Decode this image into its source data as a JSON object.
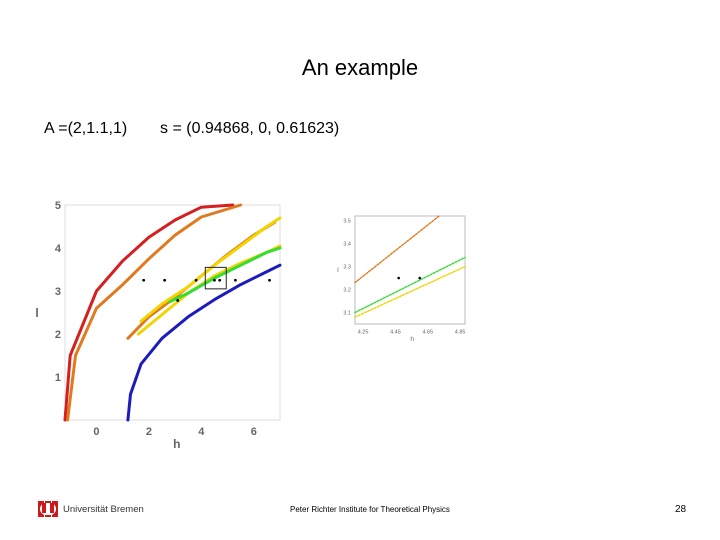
{
  "slide": {
    "title": "An example",
    "formula_a": "A =(2,1.1,1)",
    "formula_s": "s = (0.94868, 0, 0.61623)"
  },
  "footer": {
    "institute": "Peter Richter Institute for Theoretical Physics",
    "page_number": "28",
    "logo_text": "Universität Bremen",
    "logo_color": "#cc1a1a"
  },
  "chart_data": [
    {
      "type": "line",
      "xlabel": "h",
      "ylabel": "l",
      "xlim": [
        -1.2,
        7
      ],
      "ylim": [
        0,
        5
      ],
      "x_ticks": [
        "0",
        "2",
        "4",
        "6"
      ],
      "y_ticks": [
        "1",
        "2",
        "3",
        "4",
        "5"
      ],
      "series": [
        {
          "color": "#d42020",
          "points": [
            [
              -1.2,
              0
            ],
            [
              -1,
              1.5
            ],
            [
              0,
              3.0
            ],
            [
              1,
              3.7
            ],
            [
              2,
              4.25
            ],
            [
              3,
              4.65
            ],
            [
              4,
              4.95
            ],
            [
              5.2,
              5.0
            ]
          ]
        },
        {
          "color": "#e07a20",
          "points": [
            [
              -1.1,
              0
            ],
            [
              -0.8,
              1.5
            ],
            [
              0,
              2.6
            ],
            [
              1,
              3.15
            ],
            [
              2,
              3.75
            ],
            [
              3,
              4.3
            ],
            [
              4,
              4.72
            ],
            [
              5.5,
              5.0
            ]
          ]
        },
        {
          "color": "#e07a20",
          "points": [
            [
              1.2,
              1.9
            ],
            [
              2,
              2.4
            ],
            [
              3,
              2.85
            ],
            [
              4,
              3.35
            ],
            [
              5,
              3.85
            ],
            [
              6,
              4.3
            ],
            [
              6.8,
              4.6
            ]
          ]
        },
        {
          "color": "#f2d400",
          "points": [
            [
              1.7,
              2.3
            ],
            [
              2.5,
              2.7
            ],
            [
              3.5,
              3.1
            ],
            [
              4.5,
              3.6
            ],
            [
              5.5,
              4.05
            ],
            [
              6.5,
              4.5
            ],
            [
              7,
              4.7
            ]
          ]
        },
        {
          "color": "#f2d400",
          "points": [
            [
              1.6,
              2.0
            ],
            [
              2.5,
              2.45
            ],
            [
              3.5,
              2.95
            ],
            [
              4.5,
              3.35
            ],
            [
              5.5,
              3.65
            ],
            [
              6.5,
              3.9
            ],
            [
              7,
              4.05
            ]
          ]
        },
        {
          "color": "#33dd33",
          "points": [
            [
              2.8,
              2.75
            ],
            [
              3.5,
              2.95
            ],
            [
              4.5,
              3.3
            ],
            [
              5.5,
              3.6
            ],
            [
              6.5,
              3.9
            ],
            [
              7,
              4.0
            ]
          ]
        },
        {
          "color": "#1c1cbb",
          "points": [
            [
              1.2,
              0
            ],
            [
              1.3,
              0.6
            ],
            [
              1.7,
              1.3
            ],
            [
              2.5,
              1.9
            ],
            [
              3.5,
              2.4
            ],
            [
              4.5,
              2.8
            ],
            [
              5.5,
              3.15
            ],
            [
              6.5,
              3.45
            ],
            [
              7,
              3.6
            ]
          ]
        }
      ],
      "points": [
        [
          1.8,
          3.25
        ],
        [
          2.6,
          3.25
        ],
        [
          3.8,
          3.25
        ],
        [
          4.5,
          3.25
        ],
        [
          4.7,
          3.25
        ],
        [
          5.3,
          3.25
        ],
        [
          6.6,
          3.25
        ],
        [
          3.1,
          2.78
        ]
      ],
      "zoom_box": {
        "x": [
          4.15,
          4.95
        ],
        "y": [
          3.05,
          3.55
        ]
      }
    },
    {
      "type": "line",
      "xlabel": "h",
      "ylabel": "l",
      "xlim": [
        4.2,
        4.88
      ],
      "ylim": [
        3.05,
        3.52
      ],
      "x_ticks": [
        "4.25",
        "4.45",
        "4.65",
        "4.85"
      ],
      "y_ticks": [
        "3.1",
        "3.2",
        "3.3",
        "3.4",
        "3.5"
      ],
      "series": [
        {
          "color": "#e07a20",
          "dashed": true,
          "points": [
            [
              4.2,
              3.23
            ],
            [
              4.72,
              3.52
            ]
          ]
        },
        {
          "color": "#33dd33",
          "dashed": true,
          "points": [
            [
              4.2,
              3.1
            ],
            [
              4.88,
              3.34
            ]
          ]
        },
        {
          "color": "#f2d400",
          "dashed": true,
          "points": [
            [
              4.2,
              3.08
            ],
            [
              4.88,
              3.3
            ]
          ]
        }
      ],
      "points": [
        [
          4.47,
          3.25
        ],
        [
          4.6,
          3.25
        ]
      ]
    }
  ]
}
